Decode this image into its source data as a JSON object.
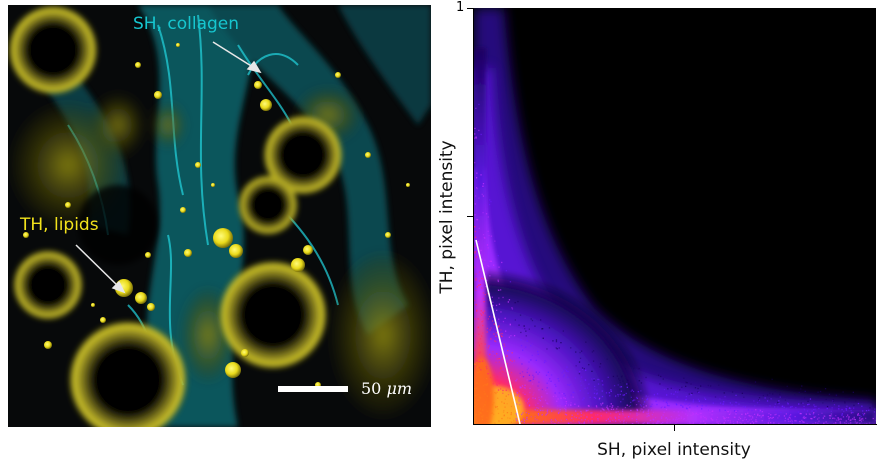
{
  "micrograph": {
    "label_sh": "SH, collagen",
    "label_th": "TH, lipids",
    "scale_value": "50",
    "scale_unit": "μm",
    "colors": {
      "collagen": "#16c6cf",
      "lipids": "#f2e21c",
      "background": "#07090a"
    }
  },
  "plot": {
    "xlabel": "SH, pixel intensity",
    "ylabel": "TH, pixel intensity",
    "y_tick_top": "1",
    "colormap": [
      "#1a0060",
      "#6a1bff",
      "#c030ff",
      "#ff2a6a",
      "#ff7a1a",
      "#ffc020"
    ],
    "background": "#000000",
    "overlay_line_color": "#ffffff"
  }
}
